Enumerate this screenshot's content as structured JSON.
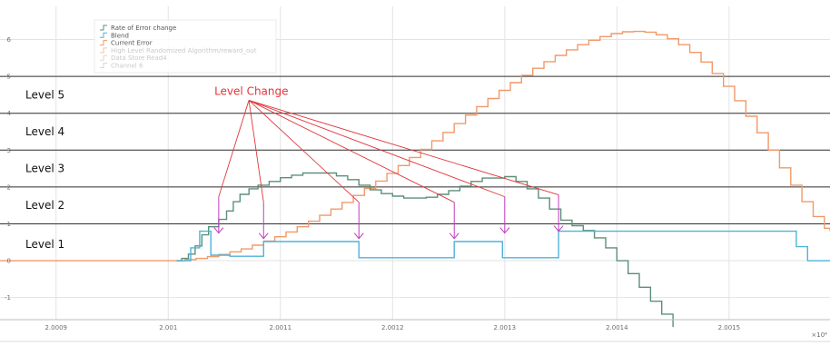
{
  "chart_data": {
    "type": "line",
    "xlim": [
      2.00085,
      2.00159
    ],
    "ylim": [
      -1.6,
      6.9
    ],
    "x_ticks": [
      {
        "value": 2.0009,
        "label": "2.0009"
      },
      {
        "value": 2.001,
        "label": "2.001"
      },
      {
        "value": 2.0011,
        "label": "2.0011"
      },
      {
        "value": 2.0012,
        "label": "2.0012"
      },
      {
        "value": 2.0013,
        "label": "2.0013"
      },
      {
        "value": 2.0014,
        "label": "2.0014"
      },
      {
        "value": 2.0015,
        "label": "2.0015"
      }
    ],
    "y_ticks": [
      {
        "value": 6,
        "label": "6"
      },
      {
        "value": 5,
        "label": "5"
      },
      {
        "value": 4,
        "label": "4"
      },
      {
        "value": 3,
        "label": "3"
      },
      {
        "value": 2,
        "label": "2"
      },
      {
        "value": 1,
        "label": "1"
      },
      {
        "value": 0,
        "label": "0"
      },
      {
        "value": -1,
        "label": "-1"
      }
    ],
    "x_exponent_label": "×10⁴",
    "grid": true,
    "legend_position": "top-left",
    "legend": [
      {
        "label": "Rate of Error change",
        "color": "#5e8f78"
      },
      {
        "label": "Blend",
        "color": "#4fb3d9"
      },
      {
        "label": "Current Error",
        "color": "#f09a6a"
      },
      {
        "label": "High Level Randomized Algorithm/reward_out",
        "color": "#f2c3a6"
      },
      {
        "label": "Data Store Read4",
        "color": "#e7d6c5"
      },
      {
        "label": "Channel 6",
        "color": "#bfe0ee"
      }
    ],
    "levels": {
      "lines": [
        1,
        2,
        3,
        4,
        5
      ],
      "labels": [
        {
          "text": "Level 5",
          "y": 4.5
        },
        {
          "text": "Level 4",
          "y": 3.5
        },
        {
          "text": "Level 3",
          "y": 2.5
        },
        {
          "text": "Level 2",
          "y": 1.5
        },
        {
          "text": "Level 1",
          "y": 0.45
        }
      ]
    },
    "annotation": {
      "text": "Level Change",
      "anchor": {
        "x": 2.00108,
        "y": 4.45
      },
      "targets": [
        {
          "x": 2.001045,
          "y": 0.75
        },
        {
          "x": 2.001085,
          "y": 0.6
        },
        {
          "x": 2.00117,
          "y": 0.6
        },
        {
          "x": 2.001255,
          "y": 0.6
        },
        {
          "x": 2.0013,
          "y": 0.75
        },
        {
          "x": 2.001348,
          "y": 0.8
        }
      ]
    },
    "series": [
      {
        "name": "Current Error",
        "color": "#f09a6a",
        "step": true,
        "points": [
          [
            2.00085,
            0
          ],
          [
            2.0010076,
            0
          ],
          [
            2.001015,
            0.03
          ],
          [
            2.001025,
            0.06
          ],
          [
            2.001035,
            0.11
          ],
          [
            2.001045,
            0.17
          ],
          [
            2.001055,
            0.24
          ],
          [
            2.001065,
            0.32
          ],
          [
            2.001075,
            0.42
          ],
          [
            2.001085,
            0.53
          ],
          [
            2.001095,
            0.65
          ],
          [
            2.001105,
            0.78
          ],
          [
            2.001115,
            0.92
          ],
          [
            2.001125,
            1.07
          ],
          [
            2.001135,
            1.23
          ],
          [
            2.001145,
            1.4
          ],
          [
            2.001155,
            1.58
          ],
          [
            2.001165,
            1.77
          ],
          [
            2.001175,
            1.96
          ],
          [
            2.001185,
            2.16
          ],
          [
            2.001195,
            2.37
          ],
          [
            2.001205,
            2.58
          ],
          [
            2.001215,
            2.8
          ],
          [
            2.001225,
            3.02
          ],
          [
            2.001235,
            3.25
          ],
          [
            2.001245,
            3.48
          ],
          [
            2.001255,
            3.72
          ],
          [
            2.001265,
            3.95
          ],
          [
            2.001275,
            4.18
          ],
          [
            2.001285,
            4.4
          ],
          [
            2.001295,
            4.62
          ],
          [
            2.001305,
            4.83
          ],
          [
            2.001315,
            5.03
          ],
          [
            2.001325,
            5.22
          ],
          [
            2.001335,
            5.4
          ],
          [
            2.001345,
            5.57
          ],
          [
            2.001355,
            5.72
          ],
          [
            2.001365,
            5.86
          ],
          [
            2.001375,
            5.98
          ],
          [
            2.001385,
            6.08
          ],
          [
            2.001395,
            6.16
          ],
          [
            2.001405,
            6.21
          ],
          [
            2.001415,
            6.22
          ],
          [
            2.001425,
            6.2
          ],
          [
            2.001435,
            6.13
          ],
          [
            2.001445,
            6.02
          ],
          [
            2.001455,
            5.86
          ],
          [
            2.001465,
            5.65
          ],
          [
            2.001475,
            5.39
          ],
          [
            2.001485,
            5.08
          ],
          [
            2.001495,
            4.73
          ],
          [
            2.001505,
            4.34
          ],
          [
            2.001515,
            3.92
          ],
          [
            2.001525,
            3.47
          ],
          [
            2.001535,
            3.0
          ],
          [
            2.001545,
            2.52
          ],
          [
            2.001555,
            2.05
          ],
          [
            2.001565,
            1.6
          ],
          [
            2.001575,
            1.2
          ],
          [
            2.001585,
            0.88
          ],
          [
            2.00159,
            0.8
          ]
        ]
      },
      {
        "name": "Rate of Error change",
        "color": "#5e8f78",
        "step": true,
        "points": [
          [
            2.0010076,
            0
          ],
          [
            2.001012,
            0.06
          ],
          [
            2.001018,
            0.18
          ],
          [
            2.001024,
            0.4
          ],
          [
            2.00103,
            0.7
          ],
          [
            2.001036,
            0.92
          ],
          [
            2.001045,
            1.12
          ],
          [
            2.001052,
            1.35
          ],
          [
            2.001058,
            1.6
          ],
          [
            2.001064,
            1.8
          ],
          [
            2.001072,
            1.95
          ],
          [
            2.00108,
            2.05
          ],
          [
            2.00109,
            2.15
          ],
          [
            2.0011,
            2.25
          ],
          [
            2.00111,
            2.32
          ],
          [
            2.00112,
            2.38
          ],
          [
            2.00114,
            2.38
          ],
          [
            2.00115,
            2.3
          ],
          [
            2.00116,
            2.2
          ],
          [
            2.00117,
            2.05
          ],
          [
            2.00118,
            1.92
          ],
          [
            2.00119,
            1.82
          ],
          [
            2.0012,
            1.75
          ],
          [
            2.00121,
            1.7
          ],
          [
            2.00123,
            1.72
          ],
          [
            2.00124,
            1.8
          ],
          [
            2.00125,
            1.9
          ],
          [
            2.00126,
            2.02
          ],
          [
            2.00127,
            2.15
          ],
          [
            2.00128,
            2.24
          ],
          [
            2.0013,
            2.28
          ],
          [
            2.00131,
            2.15
          ],
          [
            2.00132,
            1.95
          ],
          [
            2.00133,
            1.7
          ],
          [
            2.00134,
            1.4
          ],
          [
            2.00135,
            1.1
          ],
          [
            2.00136,
            0.95
          ],
          [
            2.00137,
            0.82
          ],
          [
            2.00138,
            0.62
          ],
          [
            2.00139,
            0.35
          ],
          [
            2.0014,
            0.0
          ],
          [
            2.00141,
            -0.35
          ],
          [
            2.00142,
            -0.72
          ],
          [
            2.00143,
            -1.1
          ],
          [
            2.00144,
            -1.45
          ],
          [
            2.00145,
            -1.8
          ]
        ]
      },
      {
        "name": "Blend",
        "color": "#4fb3d9",
        "step": true,
        "points": [
          [
            2.0010076,
            0
          ],
          [
            2.00102,
            0.35
          ],
          [
            2.001028,
            0.8
          ],
          [
            2.001038,
            0.15
          ],
          [
            2.001055,
            0.12
          ],
          [
            2.001082,
            0.12
          ],
          [
            2.001085,
            0.52
          ],
          [
            2.00117,
            0.52
          ],
          [
            2.00117,
            0.08
          ],
          [
            2.001255,
            0.08
          ],
          [
            2.001255,
            0.52
          ],
          [
            2.001298,
            0.52
          ],
          [
            2.001298,
            0.08
          ],
          [
            2.001348,
            0.08
          ],
          [
            2.001348,
            0.8
          ],
          [
            2.00156,
            0.8
          ],
          [
            2.00156,
            0.38
          ],
          [
            2.00157,
            0.0
          ],
          [
            2.00159,
            0.0
          ]
        ]
      }
    ]
  }
}
